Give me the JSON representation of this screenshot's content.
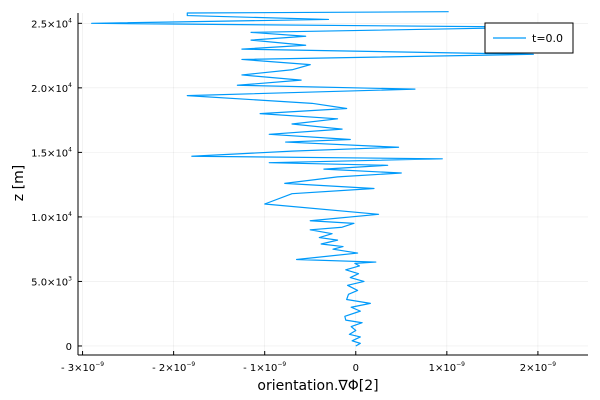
{
  "chart_data": {
    "type": "line",
    "xlabel": "orientation.∇Φ[2]",
    "ylabel": "z [m]",
    "legend_position": "top-right",
    "grid": true,
    "xlim": [
      -3.05e-09,
      2.55e-09
    ],
    "ylim": [
      -700,
      25800
    ],
    "x_ticks": [
      {
        "value": -3e-09,
        "mantissa": "- 3×10",
        "exp": "−9"
      },
      {
        "value": -2e-09,
        "mantissa": "- 2×10",
        "exp": "−9"
      },
      {
        "value": -1e-09,
        "mantissa": "- 1×10",
        "exp": "−9"
      },
      {
        "value": 0,
        "mantissa": "0",
        "exp": ""
      },
      {
        "value": 1e-09,
        "mantissa": "1×10",
        "exp": "−9"
      },
      {
        "value": 2e-09,
        "mantissa": "2×10",
        "exp": "−9"
      }
    ],
    "y_ticks": [
      {
        "value": 0,
        "mantissa": "0",
        "exp": ""
      },
      {
        "value": 5000,
        "mantissa": "5.0×10",
        "exp": "3"
      },
      {
        "value": 10000,
        "mantissa": "1.0×10",
        "exp": "4"
      },
      {
        "value": 15000,
        "mantissa": "1.5×10",
        "exp": "4"
      },
      {
        "value": 20000,
        "mantissa": "2.0×10",
        "exp": "4"
      },
      {
        "value": 25000,
        "mantissa": "2.5×10",
        "exp": "4"
      }
    ],
    "series": [
      {
        "name": "t=0.0",
        "color": "#009AFA",
        "x": [
          0,
          5e-11,
          -4e-11,
          5e-11,
          -7e-11,
          0,
          -5e-11,
          7e-11,
          -1.1e-10,
          -1.2e-10,
          5e-11,
          -5e-11,
          1.6e-10,
          -1e-10,
          -8e-11,
          2e-11,
          -9e-11,
          9e-11,
          -6e-11,
          3e-11,
          -1.1e-10,
          4e-11,
          -1e-11,
          2.2e-10,
          -6.5e-10,
          2e-11,
          -2.5e-10,
          -1.4e-10,
          -3.8e-10,
          -2e-10,
          -4e-10,
          -2.6e-10,
          -5e-10,
          -1.5e-10,
          -2e-11,
          -5e-10,
          2.5e-10,
          -1e-09,
          -7e-10,
          2e-10,
          -7.8e-10,
          -2e-10,
          5e-10,
          -3.5e-10,
          3.5e-10,
          -9.5e-10,
          9.5e-10,
          -1.8e-09,
          -7e-10,
          4.7e-10,
          -7.7e-10,
          -6e-11,
          -9.5e-10,
          -1.5e-10,
          -7e-10,
          -2e-10,
          -1.05e-09,
          -1e-10,
          -4.8e-10,
          -1.85e-09,
          6.5e-10,
          -1.3e-09,
          -6e-10,
          -1.25e-09,
          -7e-10,
          -5e-10,
          -1.25e-09,
          1.95e-09,
          -1.25e-09,
          -5.5e-10,
          -1.15e-09,
          -5.5e-10,
          -1.15e-09,
          2.05e-09,
          -2.9e-09,
          -3e-10,
          -1.85e-09,
          -1.85e-09,
          1.02e-09
        ],
        "y": [
          0,
          200,
          400,
          700,
          900,
          1200,
          1500,
          1800,
          2000,
          2300,
          2700,
          3000,
          3300,
          3600,
          4000,
          4300,
          4700,
          5000,
          5300,
          5600,
          5900,
          6200,
          6400,
          6500,
          6700,
          7200,
          7500,
          7700,
          7900,
          8200,
          8400,
          8700,
          9000,
          9200,
          9500,
          9700,
          10200,
          11000,
          11800,
          12200,
          12600,
          13100,
          13400,
          13700,
          14000,
          14200,
          14500,
          14700,
          15100,
          15400,
          15800,
          16000,
          16400,
          16800,
          17200,
          17600,
          18000,
          18400,
          18800,
          19400,
          19900,
          20200,
          20600,
          21000,
          21400,
          21800,
          22200,
          22600,
          23000,
          23300,
          23700,
          24000,
          24300,
          24700,
          25000,
          25300,
          25600,
          25800,
          25900
        ]
      }
    ]
  }
}
